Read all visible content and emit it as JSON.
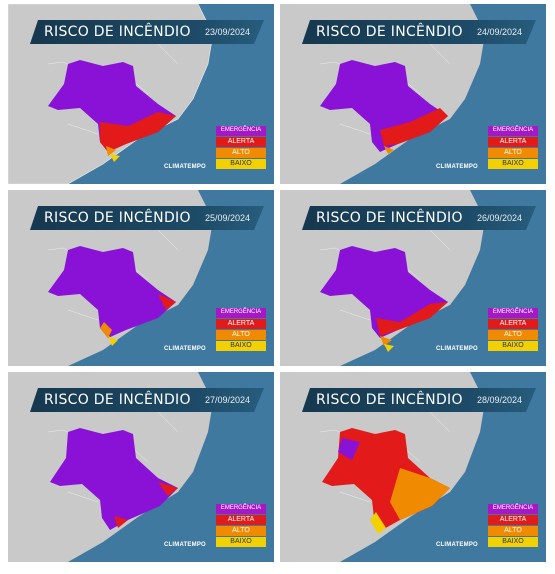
{
  "title": "RISCO DE INCÊNDIO",
  "legend": {
    "emergencia": "EMERGÊNCIA",
    "alerta": "ALERTA",
    "alto": "ALTO",
    "baixo": "BAIXO"
  },
  "logo": {
    "main": "CLIMATEMPO",
    "sub": ""
  },
  "colors": {
    "ocean": "#3f79a0",
    "land": "#c7c7c7",
    "emergencia": "#8a12d6",
    "alerta": "#e21a1a",
    "alto": "#f08a00",
    "baixo": "#f3d000",
    "title_bar": "#16384f"
  },
  "panels": [
    {
      "date": "23/09/2024",
      "dominant_level": "emergencia"
    },
    {
      "date": "24/09/2024",
      "dominant_level": "emergencia"
    },
    {
      "date": "25/09/2024",
      "dominant_level": "emergencia"
    },
    {
      "date": "26/09/2024",
      "dominant_level": "emergencia"
    },
    {
      "date": "27/09/2024",
      "dominant_level": "emergencia"
    },
    {
      "date": "28/09/2024",
      "dominant_level": "alerta"
    }
  ]
}
